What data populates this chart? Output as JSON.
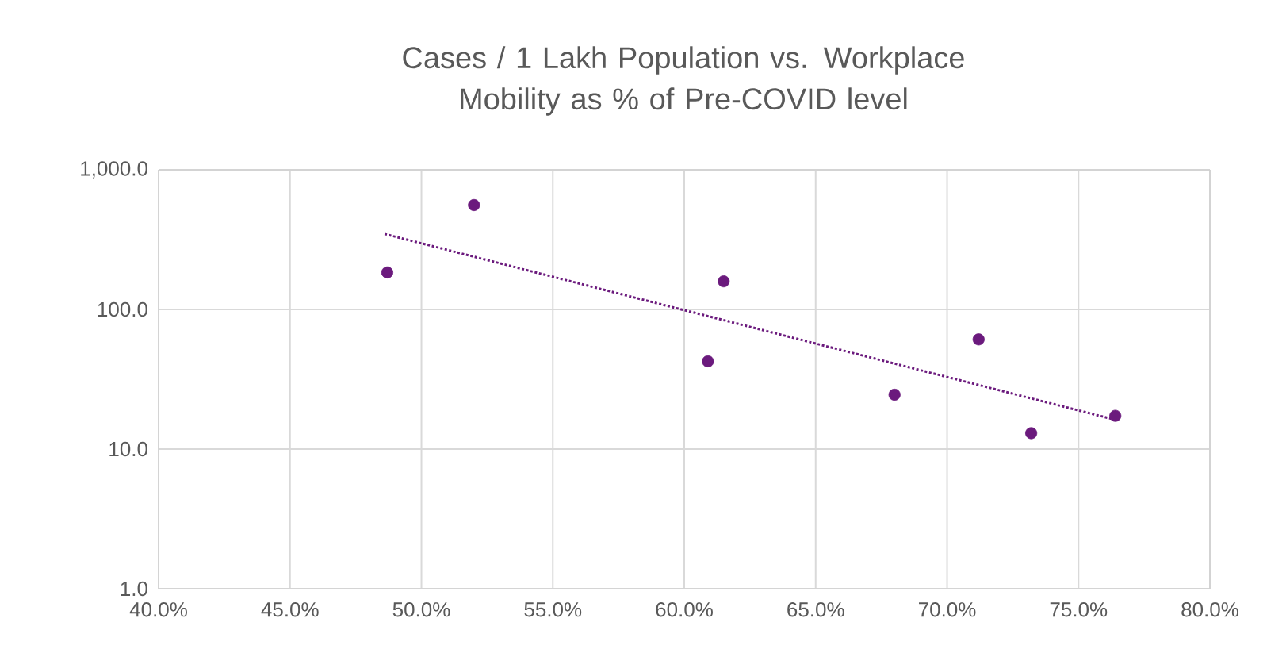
{
  "chart_data": {
    "type": "scatter",
    "title": "Cases / 1 Lakh Population vs. Workplace Mobility as % of Pre-COVID level",
    "series": [
      {
        "type": "scatter",
        "color": "#6b1a7d",
        "marker": "circle",
        "x": [
          48.7,
          52.0,
          60.9,
          61.5,
          68.0,
          71.2,
          73.2,
          76.4
        ],
        "values": [
          184,
          559,
          42.5,
          159,
          24.5,
          61,
          13,
          17.3
        ]
      },
      {
        "type": "line",
        "color": "#6b1a7d",
        "marker": "none",
        "line_style": "dotted",
        "x": [
          48.6,
          76.3
        ],
        "values": [
          347,
          16.4
        ]
      }
    ],
    "log": "y",
    "grid": true,
    "xlim": [
      40,
      80
    ],
    "ylim": [
      1,
      1000
    ],
    "xticks": [
      {
        "value": 40,
        "label": "40.0%"
      },
      {
        "value": 45,
        "label": "45.0%"
      },
      {
        "value": 50,
        "label": "50.0%"
      },
      {
        "value": 55,
        "label": "55.0%"
      },
      {
        "value": 60,
        "label": "60.0%"
      },
      {
        "value": 65,
        "label": "65.0%"
      },
      {
        "value": 70,
        "label": "70.0%"
      },
      {
        "value": 75,
        "label": "75.0%"
      },
      {
        "value": 80,
        "label": "80.0%"
      }
    ],
    "yticks": [
      {
        "value": 1,
        "label": "1.0"
      },
      {
        "value": 10,
        "label": "10.0"
      },
      {
        "value": 100,
        "label": "100.0"
      },
      {
        "value": 1000,
        "label": "1,000.0"
      }
    ]
  }
}
